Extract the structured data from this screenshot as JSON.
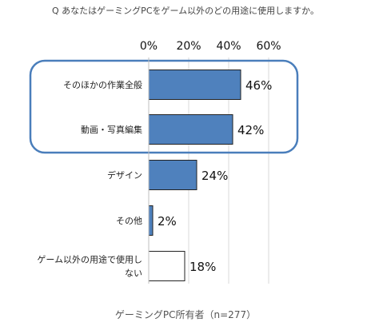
{
  "chart_data": {
    "type": "bar",
    "orientation": "horizontal",
    "title": "Q あなたはゲーミングPCをゲーム以外のどの用途に使用しますか。",
    "x_ticks": [
      "0%",
      "20%",
      "40%",
      "60%"
    ],
    "xlim": [
      0,
      60
    ],
    "grid": true,
    "categories": [
      [
        "そのほかの作業全般"
      ],
      [
        "動画・写真編集"
      ],
      [
        "デザイン"
      ],
      [
        "その他"
      ],
      [
        "ゲーム以外の用途で使用し",
        "ない"
      ]
    ],
    "values": [
      46,
      42,
      24,
      2,
      18
    ],
    "value_labels": [
      "46%",
      "42%",
      "24%",
      "2%",
      "18%"
    ],
    "bar_colors": [
      "#4f81bd",
      "#4f81bd",
      "#4f81bd",
      "#4f81bd",
      "#ffffff"
    ],
    "highlight_color": "#4a7ebb",
    "highlighted_categories": [
      0,
      1
    ],
    "footnote": "ゲーミングPC所有者（n=277）"
  }
}
